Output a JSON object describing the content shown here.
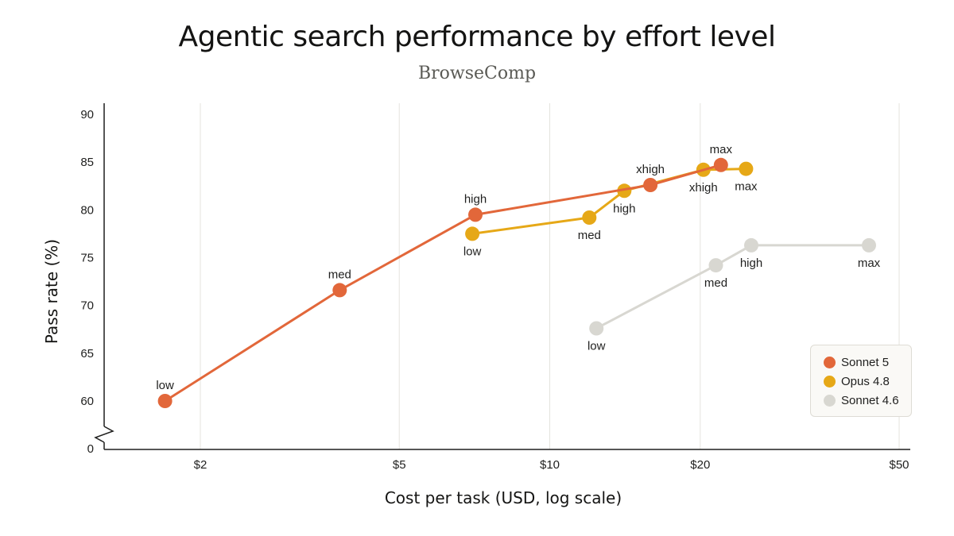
{
  "chart_data": {
    "type": "line",
    "title": "Agentic search performance by effort level",
    "subtitle": "BrowseComp",
    "xlabel": "Cost per task (USD, log scale)",
    "ylabel": "Pass rate (%)",
    "x_scale": "log",
    "xlim": [
      1.55,
      52
    ],
    "ylim": [
      60,
      90
    ],
    "y_axis_break": true,
    "y_break_value": 0,
    "x_ticks": [
      {
        "value": 2,
        "label": "$2"
      },
      {
        "value": 5,
        "label": "$5"
      },
      {
        "value": 10,
        "label": "$10"
      },
      {
        "value": 20,
        "label": "$20"
      },
      {
        "value": 50,
        "label": "$50"
      }
    ],
    "y_ticks": [
      {
        "value": 90,
        "label": "90"
      },
      {
        "value": 85,
        "label": "85"
      },
      {
        "value": 80,
        "label": "80"
      },
      {
        "value": 75,
        "label": "75"
      },
      {
        "value": 70,
        "label": "70"
      },
      {
        "value": 65,
        "label": "65"
      },
      {
        "value": 60,
        "label": "60"
      },
      {
        "value": 0,
        "label": "0"
      }
    ],
    "grid": "vertical",
    "legend_position": "bottom-right",
    "series": [
      {
        "name": "Sonnet 4.6",
        "color": "#d8d7d1",
        "points": [
          {
            "x": 12.4,
            "y": 67.6,
            "label": "low",
            "label_pos": "below"
          },
          {
            "x": 21.5,
            "y": 74.2,
            "label": "med",
            "label_pos": "below"
          },
          {
            "x": 25.3,
            "y": 76.3,
            "label": "high",
            "label_pos": "below-right"
          },
          {
            "x": 43.5,
            "y": 76.3,
            "label": "max",
            "label_pos": "below"
          }
        ]
      },
      {
        "name": "Opus 4.8",
        "color": "#e6a817",
        "points": [
          {
            "x": 7.0,
            "y": 77.5,
            "label": "low",
            "label_pos": "below"
          },
          {
            "x": 12.0,
            "y": 79.2,
            "label": "med",
            "label_pos": "below"
          },
          {
            "x": 14.1,
            "y": 82.0,
            "label": "high",
            "label_pos": "below"
          },
          {
            "x": 20.3,
            "y": 84.2,
            "label": "xhigh",
            "label_pos": "below"
          },
          {
            "x": 24.7,
            "y": 84.3,
            "label": "max",
            "label_pos": "below"
          }
        ]
      },
      {
        "name": "Sonnet 5",
        "color": "#e2673a",
        "points": [
          {
            "x": 1.7,
            "y": 60.0,
            "label": "low",
            "label_pos": "above"
          },
          {
            "x": 3.8,
            "y": 71.6,
            "label": "med",
            "label_pos": "above"
          },
          {
            "x": 7.1,
            "y": 79.5,
            "label": "high",
            "label_pos": "above"
          },
          {
            "x": 15.9,
            "y": 82.6,
            "label": "xhigh",
            "label_pos": "above"
          },
          {
            "x": 22.0,
            "y": 84.7,
            "label": "max",
            "label_pos": "above"
          }
        ]
      }
    ],
    "legend": [
      {
        "name": "Sonnet 5",
        "color": "#e2673a"
      },
      {
        "name": "Opus 4.8",
        "color": "#e6a817"
      },
      {
        "name": "Sonnet 4.6",
        "color": "#d8d7d1"
      }
    ]
  }
}
